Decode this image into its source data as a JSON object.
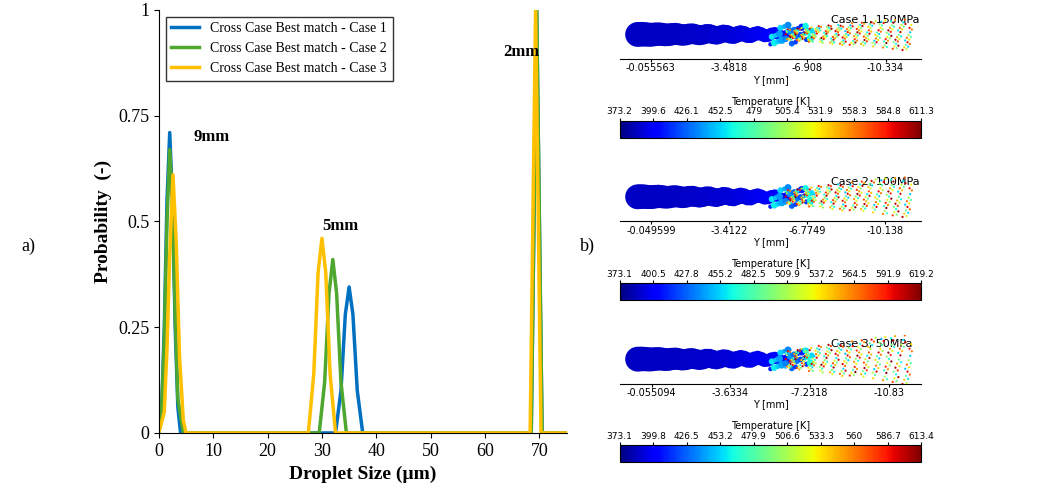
{
  "chart_data": [
    {
      "type": "line",
      "panel_label": "a)",
      "xlabel": "Droplet Size (µm)",
      "ylabel": "Probability  (-)",
      "xlim": [
        0,
        75
      ],
      "xticks": [
        0,
        10,
        20,
        30,
        40,
        50,
        60,
        70
      ],
      "ylim": [
        0,
        1
      ],
      "yticks": [
        0,
        0.25,
        0.5,
        0.75,
        1
      ],
      "legend": "upper left",
      "annotations": [
        "9mm",
        "5mm",
        "2mm"
      ],
      "series": [
        {
          "name": "Cross Case Best match - Case 1",
          "color": "#0070C0",
          "x": [
            0,
            0.5,
            1,
            1.5,
            2,
            2.5,
            3,
            3.5,
            4,
            32.5,
            33.5,
            34.3,
            35,
            35.7,
            36.5,
            37.5,
            68.5,
            69,
            69.5,
            70,
            70.5,
            75
          ],
          "values": [
            0,
            0.05,
            0.25,
            0.55,
            0.71,
            0.55,
            0.25,
            0.06,
            0,
            0,
            0.1,
            0.28,
            0.345,
            0.28,
            0.1,
            0,
            0,
            0.5,
            1,
            0.5,
            0,
            0
          ]
        },
        {
          "name": "Cross Case Best match - Case 2",
          "color": "#4EA72E",
          "x": [
            0,
            0.5,
            1,
            1.5,
            2,
            2.5,
            3,
            3.5,
            4.5,
            29.5,
            30.5,
            31.3,
            32,
            32.7,
            33.5,
            34.5,
            68.5,
            69,
            69.5,
            70,
            70.5,
            75
          ],
          "values": [
            0,
            0.05,
            0.22,
            0.5,
            0.67,
            0.55,
            0.28,
            0.08,
            0,
            0,
            0.12,
            0.33,
            0.41,
            0.33,
            0.12,
            0,
            0,
            0.5,
            1,
            0.5,
            0,
            0
          ]
        },
        {
          "name": "Cross Case Best match - Case 3",
          "color": "#FFC000",
          "x": [
            0,
            1,
            1.5,
            2,
            2.6,
            3.2,
            3.8,
            4.5,
            5,
            27.5,
            28.5,
            29.3,
            30,
            30.7,
            31.5,
            32.5,
            68.3,
            68.8,
            69.3,
            69.8,
            70.3,
            75
          ],
          "values": [
            0,
            0.05,
            0.2,
            0.42,
            0.61,
            0.45,
            0.18,
            0.03,
            0,
            0,
            0.14,
            0.38,
            0.46,
            0.38,
            0.14,
            0,
            0,
            0.5,
            1,
            0.5,
            0,
            0
          ]
        }
      ]
    },
    {
      "type": "image",
      "panel_label": "b)",
      "title": "Case 1, 150MPa",
      "xlabel": "Y [mm]",
      "xlim": [
        1.3,
        -11.9
      ],
      "xticks": [
        -0.055563,
        -3.4818,
        -6.908,
        -10.334
      ],
      "colorbar": {
        "label": "Temperature [K]",
        "range": [
          373.2,
          611.3
        ],
        "ticks": [
          373.2,
          399.6,
          426.1,
          452.5,
          479,
          505.4,
          531.9,
          558.3,
          584.8,
          611.3
        ]
      }
    },
    {
      "type": "image",
      "title": "Case 2, 100MPa",
      "xlabel": "Y [mm]",
      "xlim": [
        1.3,
        -11.7
      ],
      "xticks": [
        -0.049599,
        -3.4122,
        -6.7749,
        -10.138
      ],
      "colorbar": {
        "label": "Temperature [K]",
        "range": [
          373.1,
          619.2
        ],
        "ticks": [
          373.1,
          400.5,
          427.8,
          455.2,
          482.5,
          509.9,
          537.2,
          564.5,
          591.9,
          619.2
        ]
      }
    },
    {
      "type": "image",
      "title": "Case 3, 50MPa",
      "xlabel": "Y [mm]",
      "xlim": [
        1.4,
        -12.3
      ],
      "xticks": [
        -0.055094,
        -3.6334,
        -7.2318,
        -10.83
      ],
      "colorbar": {
        "label": "Temperature [K]",
        "range": [
          373.1,
          613.4
        ],
        "ticks": [
          373.1,
          399.8,
          426.5,
          453.2,
          479.9,
          506.6,
          533.3,
          560,
          586.7,
          613.4
        ]
      }
    }
  ]
}
